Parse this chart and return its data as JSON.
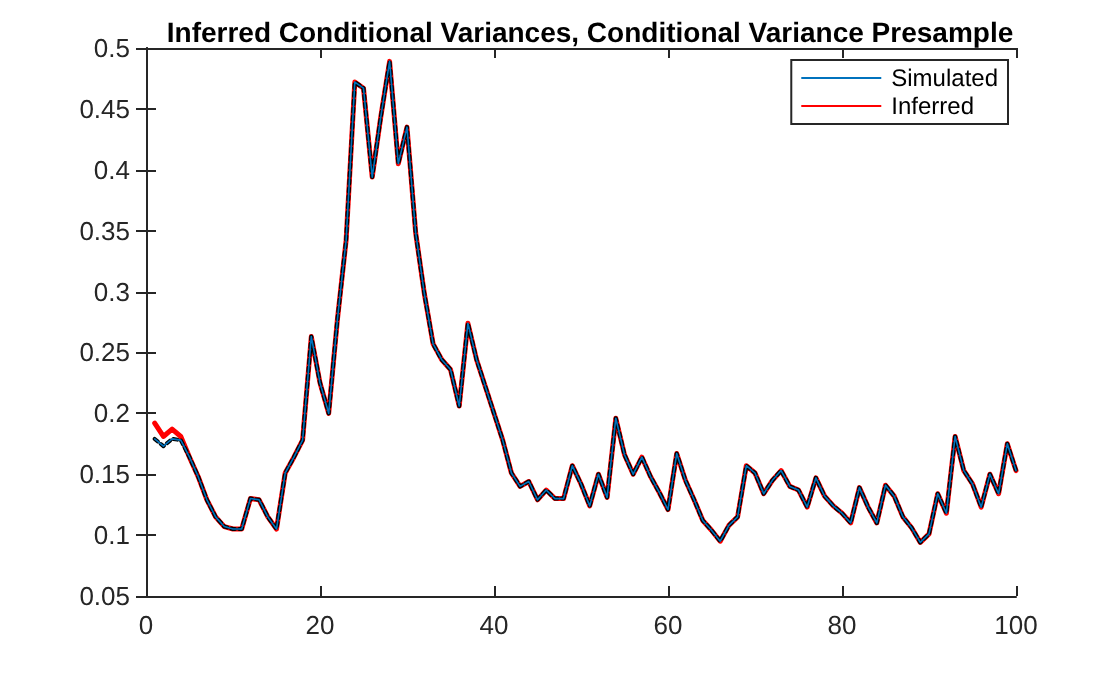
{
  "chart_data": {
    "type": "line",
    "title": "Inferred Conditional Variances, Conditional Variance Presample",
    "x": [
      1,
      2,
      3,
      4,
      5,
      6,
      7,
      8,
      9,
      10,
      11,
      12,
      13,
      14,
      15,
      16,
      17,
      18,
      19,
      20,
      21,
      22,
      23,
      24,
      25,
      26,
      27,
      28,
      29,
      30,
      31,
      32,
      33,
      34,
      35,
      36,
      37,
      38,
      39,
      40,
      41,
      42,
      43,
      44,
      45,
      46,
      47,
      48,
      49,
      50,
      51,
      52,
      53,
      54,
      55,
      56,
      57,
      58,
      59,
      60,
      61,
      62,
      63,
      64,
      65,
      66,
      67,
      68,
      69,
      70,
      71,
      72,
      73,
      74,
      75,
      76,
      77,
      78,
      79,
      80,
      81,
      82,
      83,
      84,
      85,
      86,
      87,
      88,
      89,
      90,
      91,
      92,
      93,
      94,
      95,
      96,
      97,
      98,
      99,
      100
    ],
    "series": [
      {
        "name": "Simulated",
        "color": "#0072bd",
        "values": [
          0.179,
          0.173,
          0.179,
          0.178,
          0.164,
          0.148,
          0.129,
          0.115,
          0.107,
          0.105,
          0.105,
          0.13,
          0.129,
          0.115,
          0.105,
          0.151,
          0.164,
          0.178,
          0.263,
          0.225,
          0.2,
          0.277,
          0.342,
          0.472,
          0.467,
          0.394,
          0.444,
          0.489,
          0.405,
          0.435,
          0.348,
          0.298,
          0.257,
          0.244,
          0.236,
          0.206,
          0.274,
          0.244,
          0.222,
          0.2,
          0.178,
          0.151,
          0.14,
          0.144,
          0.129,
          0.137,
          0.13,
          0.13,
          0.157,
          0.142,
          0.124,
          0.15,
          0.131,
          0.196,
          0.166,
          0.15,
          0.164,
          0.148,
          0.135,
          0.121,
          0.167,
          0.145,
          0.129,
          0.112,
          0.104,
          0.095,
          0.108,
          0.115,
          0.157,
          0.151,
          0.134,
          0.145,
          0.153,
          0.14,
          0.137,
          0.123,
          0.147,
          0.132,
          0.124,
          0.118,
          0.11,
          0.139,
          0.123,
          0.11,
          0.141,
          0.132,
          0.115,
          0.106,
          0.094,
          0.101,
          0.134,
          0.118,
          0.181,
          0.153,
          0.142,
          0.123,
          0.15,
          0.134,
          0.175,
          0.153
        ]
      },
      {
        "name": "Inferred",
        "color": "#ff0000",
        "values": [
          0.192,
          0.181,
          0.187,
          0.181,
          0.164,
          0.148,
          0.129,
          0.115,
          0.107,
          0.105,
          0.105,
          0.13,
          0.129,
          0.115,
          0.105,
          0.151,
          0.164,
          0.178,
          0.263,
          0.225,
          0.2,
          0.277,
          0.342,
          0.472,
          0.467,
          0.394,
          0.444,
          0.489,
          0.405,
          0.435,
          0.348,
          0.298,
          0.257,
          0.244,
          0.236,
          0.206,
          0.274,
          0.244,
          0.222,
          0.2,
          0.178,
          0.151,
          0.14,
          0.144,
          0.129,
          0.137,
          0.13,
          0.13,
          0.157,
          0.142,
          0.124,
          0.15,
          0.131,
          0.196,
          0.166,
          0.15,
          0.164,
          0.148,
          0.135,
          0.121,
          0.167,
          0.145,
          0.129,
          0.112,
          0.104,
          0.095,
          0.108,
          0.115,
          0.157,
          0.151,
          0.134,
          0.145,
          0.153,
          0.14,
          0.137,
          0.123,
          0.147,
          0.132,
          0.124,
          0.118,
          0.11,
          0.139,
          0.123,
          0.11,
          0.141,
          0.132,
          0.115,
          0.106,
          0.094,
          0.101,
          0.134,
          0.118,
          0.181,
          0.153,
          0.142,
          0.123,
          0.15,
          0.134,
          0.175,
          0.153
        ]
      },
      {
        "color": "#000000",
        "line_style": "dotted",
        "values": [
          0.179,
          0.173,
          0.179,
          0.178,
          0.164,
          0.148,
          0.129,
          0.115,
          0.107,
          0.105,
          0.105,
          0.13,
          0.129,
          0.115,
          0.105,
          0.151,
          0.164,
          0.178,
          0.263,
          0.225,
          0.2,
          0.277,
          0.342,
          0.472,
          0.467,
          0.394,
          0.444,
          0.489,
          0.405,
          0.435,
          0.348,
          0.298,
          0.257,
          0.244,
          0.236,
          0.206,
          0.274,
          0.244,
          0.222,
          0.2,
          0.178,
          0.151,
          0.14,
          0.144,
          0.129,
          0.137,
          0.13,
          0.13,
          0.157,
          0.142,
          0.124,
          0.15,
          0.131,
          0.196,
          0.166,
          0.15,
          0.164,
          0.148,
          0.135,
          0.121,
          0.167,
          0.145,
          0.129,
          0.112,
          0.104,
          0.095,
          0.108,
          0.115,
          0.157,
          0.151,
          0.134,
          0.145,
          0.153,
          0.14,
          0.137,
          0.123,
          0.147,
          0.132,
          0.124,
          0.118,
          0.11,
          0.139,
          0.123,
          0.11,
          0.141,
          0.132,
          0.115,
          0.106,
          0.094,
          0.101,
          0.134,
          0.118,
          0.181,
          0.153,
          0.142,
          0.123,
          0.15,
          0.134,
          0.175,
          0.153
        ]
      }
    ],
    "xlim": [
      0,
      100
    ],
    "xticks": [
      0,
      20,
      40,
      60,
      80,
      100
    ],
    "ylim": [
      0.05,
      0.5
    ],
    "yticks": [
      0.05,
      0.1,
      0.15,
      0.2,
      0.25,
      0.3,
      0.35,
      0.4,
      0.45,
      0.5
    ],
    "grid": false,
    "legend": "top right",
    "marker": "none",
    "line_style": "solid"
  }
}
